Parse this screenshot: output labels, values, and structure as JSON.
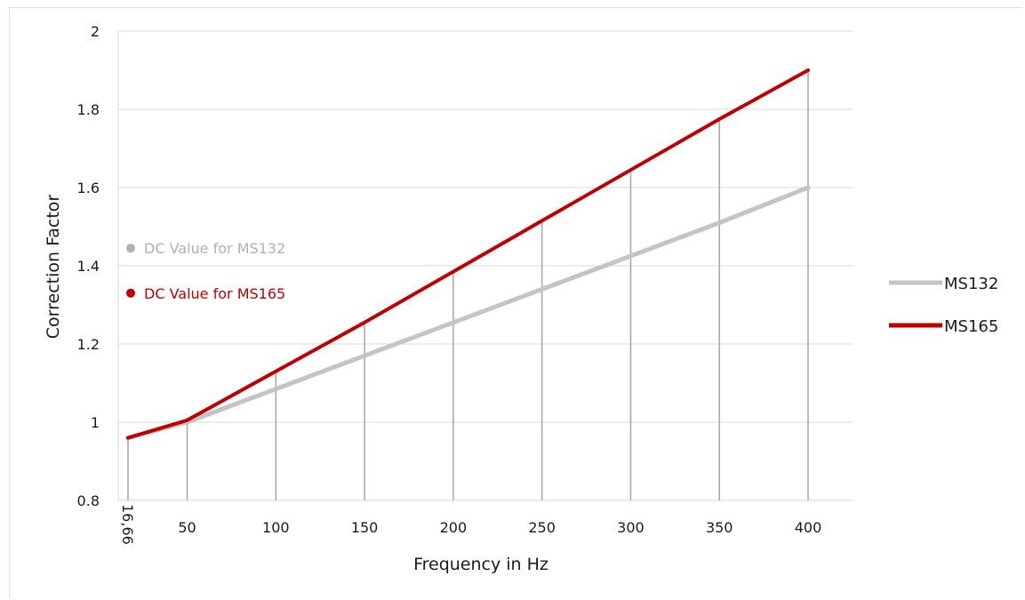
{
  "colors": {
    "ms132": "#c4c4c4",
    "ms165": "#c00000",
    "grid": "#d9d9d9",
    "drop_lines": "#a6a6a6"
  },
  "chart_data": {
    "type": "line",
    "xlabel": "Frequency in Hz",
    "ylabel": "Correction Factor",
    "ylim": [
      0.8,
      2.0
    ],
    "yticks": [
      "0.8",
      "1",
      "1.2",
      "1.4",
      "1.6",
      "1.8",
      "2"
    ],
    "x": [
      16.66,
      50,
      100,
      150,
      200,
      250,
      300,
      350,
      400
    ],
    "xtick_labels": [
      "16,66",
      "50",
      "100",
      "150",
      "200",
      "250",
      "300",
      "350",
      "400"
    ],
    "xlim": [
      16.66,
      400
    ],
    "grid": "horizontal",
    "legend_position": "right",
    "series": [
      {
        "name": "MS132",
        "color": "#c4c4c4",
        "values": [
          0.96,
          1.0,
          1.085,
          1.17,
          1.255,
          1.34,
          1.425,
          1.51,
          1.6
        ]
      },
      {
        "name": "MS165",
        "color": "#c00000",
        "values": [
          0.96,
          1.005,
          1.13,
          1.255,
          1.385,
          1.515,
          1.645,
          1.775,
          1.9
        ]
      }
    ],
    "annotations": [
      {
        "text": "DC Value for MS132",
        "value": 1.445,
        "color": "#b0b0b0"
      },
      {
        "text": "DC Value for MS165",
        "value": 1.33,
        "color": "#c00000"
      }
    ],
    "drop_lines": "vertical drop lines from each x value to the higher series"
  }
}
